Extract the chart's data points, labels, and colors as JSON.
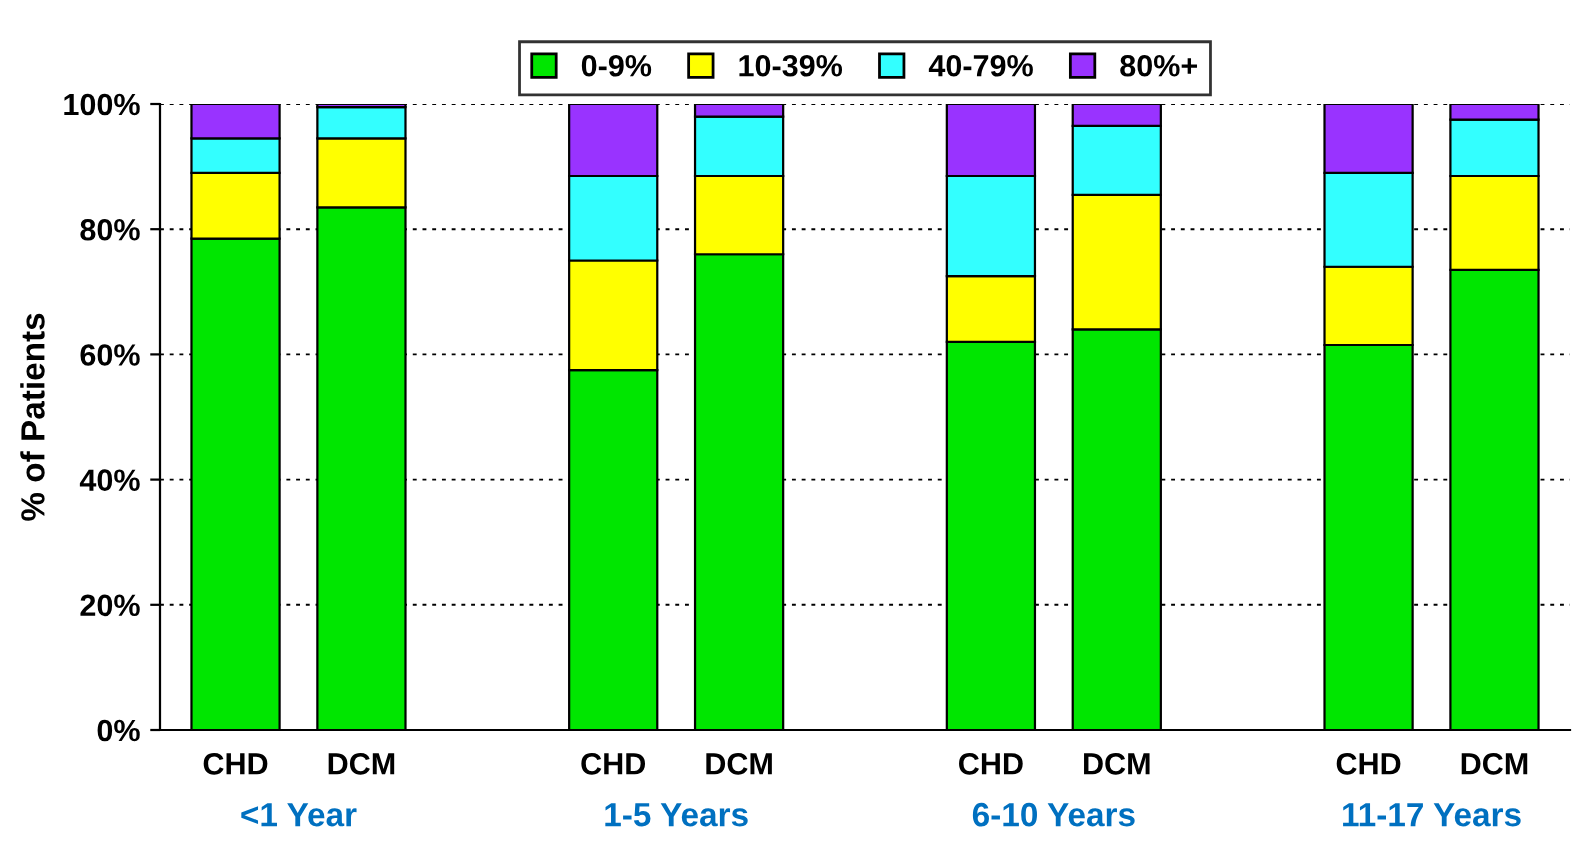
{
  "chart_data": {
    "type": "bar",
    "stacked": true,
    "ylabel": "% of Patients",
    "categories": [
      "CHD",
      "DCM",
      null,
      "CHD",
      "DCM",
      null,
      "CHD",
      "DCM",
      null,
      "CHD",
      "DCM"
    ],
    "series": [
      {
        "name": "0-9%",
        "color": "#00e600",
        "values": [
          78.5,
          83.5,
          null,
          57.5,
          76,
          null,
          62,
          64,
          null,
          61.5,
          73.5
        ]
      },
      {
        "name": "10-39%",
        "color": "#ffff00",
        "values": [
          10.5,
          11,
          null,
          17.5,
          12.5,
          null,
          10.5,
          21.5,
          null,
          12.5,
          15
        ]
      },
      {
        "name": "40-79%",
        "color": "#33ffff",
        "values": [
          5.5,
          5,
          null,
          13.5,
          9.5,
          null,
          16,
          11,
          null,
          15,
          9
        ]
      },
      {
        "name": "80%+",
        "color": "#9933ff",
        "values": [
          5.5,
          0.5,
          null,
          11.5,
          2,
          null,
          11.5,
          3.5,
          null,
          11,
          2.5
        ]
      }
    ],
    "annotations": [
      "<1 Year",
      "1-5 Years",
      "6-10 Years",
      "11-17 Years"
    ],
    "ylim": [
      0,
      100
    ],
    "yticks": [
      {
        "value": 0,
        "label": "0%"
      },
      {
        "value": 20,
        "label": "20%"
      },
      {
        "value": 40,
        "label": "40%"
      },
      {
        "value": 60,
        "label": "60%"
      },
      {
        "value": 80,
        "label": "80%"
      },
      {
        "value": 100,
        "label": "100%"
      }
    ],
    "grid": "y",
    "legend": "top"
  }
}
